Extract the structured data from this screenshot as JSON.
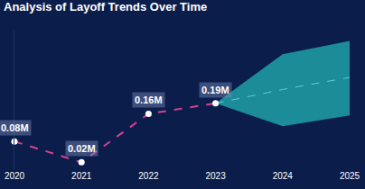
{
  "chart_data": {
    "type": "line",
    "title": "Analysis of Layoff Trends Over Time",
    "x": [
      2020,
      2021,
      2022,
      2023,
      2024,
      2025
    ],
    "xlim": [
      2020,
      2025
    ],
    "xticks": [
      2020,
      2021,
      2022,
      2023,
      2024,
      2025
    ],
    "ylim": [
      0,
      400000
    ],
    "grid": false,
    "tick_labels": "x",
    "data_labels": true,
    "series": [
      {
        "color": "#d6408f",
        "line_style": "dashed",
        "marker": "circle",
        "values": [
          80000,
          20000,
          160000,
          190000,
          null,
          null
        ],
        "value_labels": [
          "0.08M",
          "0.02M",
          "0.16M",
          "0.19M",
          null,
          null
        ]
      }
    ],
    "forecast": {
      "color": "#1b8c98",
      "line_style": "dashed",
      "values": [
        null,
        null,
        null,
        190000,
        230000,
        265000
      ],
      "lower": [
        null,
        null,
        null,
        190000,
        124000,
        155000
      ],
      "upper": [
        null,
        null,
        null,
        190000,
        332000,
        370000
      ]
    }
  }
}
